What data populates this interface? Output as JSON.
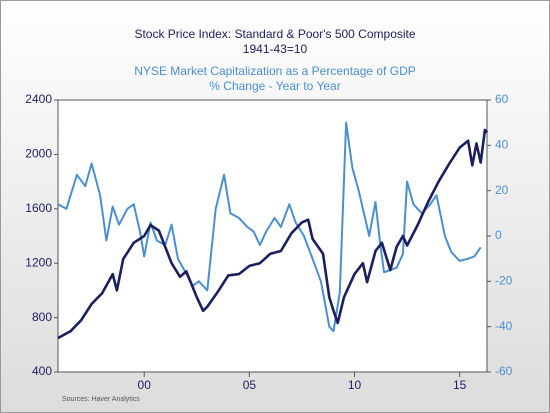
{
  "chart_data": {
    "type": "line",
    "source": "Sources:  Haver Analytics",
    "xlim": [
      1995.9,
      2016.3
    ],
    "xticks": [
      {
        "value": 2000,
        "label": "00"
      },
      {
        "value": 2005,
        "label": "05"
      },
      {
        "value": 2010,
        "label": "10"
      },
      {
        "value": 2015,
        "label": "15"
      }
    ],
    "ylim": [
      400,
      2400
    ],
    "yticks": [
      400,
      800,
      1200,
      1600,
      2000,
      2400
    ],
    "y2lim": [
      -60,
      60
    ],
    "y2ticks": [
      -60,
      -40,
      -20,
      0,
      20,
      40,
      60
    ],
    "series": [
      {
        "name": "Stock Price Index: Standard & Poor's 500 Composite",
        "note": "1941-43=10",
        "color": "#1b1f5e",
        "axis": "y",
        "x": [
          1995.9,
          1996.5,
          1997.0,
          1997.5,
          1998.0,
          1998.5,
          1998.7,
          1999.0,
          1999.5,
          2000.0,
          2000.3,
          2000.7,
          2001.0,
          2001.3,
          2001.7,
          2002.0,
          2002.5,
          2002.8,
          2003.0,
          2003.5,
          2004.0,
          2004.5,
          2005.0,
          2005.5,
          2006.0,
          2006.5,
          2007.0,
          2007.5,
          2007.8,
          2008.0,
          2008.5,
          2008.8,
          2009.0,
          2009.2,
          2009.5,
          2010.0,
          2010.4,
          2010.6,
          2011.0,
          2011.3,
          2011.7,
          2012.0,
          2012.3,
          2012.5,
          2013.0,
          2013.5,
          2014.0,
          2014.5,
          2015.0,
          2015.4,
          2015.6,
          2015.8,
          2016.0,
          2016.2,
          2016.3
        ],
        "values": [
          650,
          700,
          780,
          900,
          980,
          1120,
          1000,
          1230,
          1350,
          1400,
          1480,
          1440,
          1320,
          1200,
          1100,
          1140,
          950,
          850,
          880,
          990,
          1110,
          1120,
          1180,
          1200,
          1270,
          1290,
          1420,
          1500,
          1520,
          1380,
          1270,
          950,
          850,
          760,
          950,
          1120,
          1200,
          1060,
          1290,
          1350,
          1150,
          1320,
          1400,
          1330,
          1480,
          1650,
          1800,
          1930,
          2050,
          2100,
          1920,
          2080,
          1940,
          2180,
          2160
        ]
      },
      {
        "name": "NYSE Market Capitalization as a Percentage of GDP",
        "note": "% Change - Year to Year",
        "color": "#4a8fd0",
        "axis": "y2",
        "x": [
          1995.9,
          1996.3,
          1996.8,
          1997.2,
          1997.5,
          1997.9,
          1998.2,
          1998.5,
          1998.8,
          1999.2,
          1999.5,
          1999.8,
          2000.0,
          2000.3,
          2000.6,
          2001.0,
          2001.3,
          2001.6,
          2001.9,
          2002.3,
          2002.6,
          2003.0,
          2003.4,
          2003.8,
          2004.1,
          2004.5,
          2004.9,
          2005.2,
          2005.5,
          2005.8,
          2006.2,
          2006.5,
          2006.9,
          2007.2,
          2007.6,
          2008.0,
          2008.4,
          2008.8,
          2009.0,
          2009.3,
          2009.6,
          2009.9,
          2010.2,
          2010.5,
          2010.7,
          2011.0,
          2011.2,
          2011.4,
          2011.7,
          2012.0,
          2012.3,
          2012.5,
          2012.8,
          2013.2,
          2013.6,
          2013.9,
          2014.3,
          2014.6,
          2015.0,
          2015.4,
          2015.7,
          2016.0
        ],
        "values": [
          14,
          12,
          27,
          22,
          32,
          18,
          -2,
          13,
          5,
          12,
          14,
          2,
          -9,
          6,
          -2,
          -4,
          5,
          -10,
          -15,
          -22,
          -20,
          -24,
          12,
          27,
          10,
          8,
          4,
          2,
          -4,
          2,
          8,
          4,
          14,
          6,
          0,
          -10,
          -20,
          -40,
          -42,
          -25,
          50,
          30,
          20,
          8,
          0,
          15,
          -2,
          -16,
          -15,
          -14,
          -8,
          24,
          14,
          10,
          14,
          18,
          0,
          -7,
          -11,
          -10,
          -9,
          -5
        ]
      }
    ]
  }
}
